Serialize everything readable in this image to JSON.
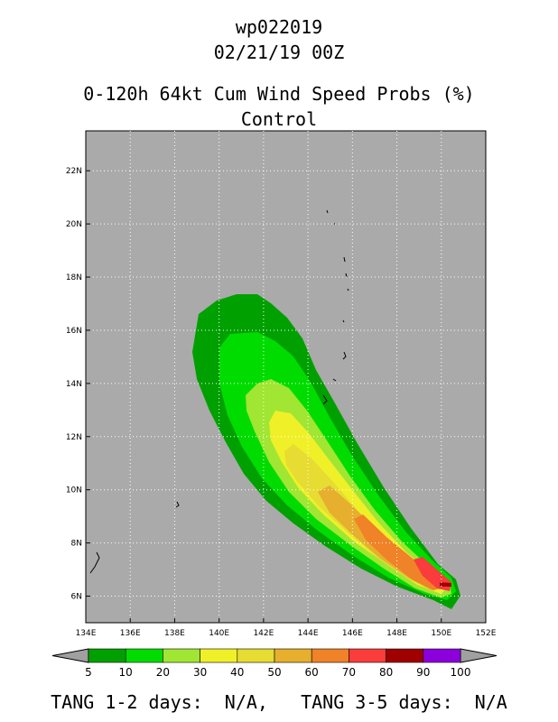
{
  "header": {
    "storm_id": "wp022019",
    "datetime": "02/21/19 00Z",
    "product_title": "0-120h 64kt Cum Wind Speed Probs (%)",
    "member": "Control"
  },
  "map": {
    "lon_range": [
      134,
      152
    ],
    "lat_range": [
      5,
      23.5
    ],
    "lon_ticks": [
      "134E",
      "136E",
      "138E",
      "140E",
      "142E",
      "144E",
      "146E",
      "148E",
      "150E",
      "152E"
    ],
    "lat_ticks": [
      "6N",
      "8N",
      "10N",
      "12N",
      "14N",
      "16N",
      "18N",
      "20N",
      "22N"
    ],
    "background_color": "#aaaaaa",
    "grid": "dotted"
  },
  "colorbar": {
    "levels": [
      "5",
      "10",
      "20",
      "30",
      "40",
      "50",
      "60",
      "70",
      "80",
      "90",
      "100"
    ],
    "colors": [
      "#00a000",
      "#00dc00",
      "#a0e632",
      "#f0f028",
      "#e6dc32",
      "#e6af2d",
      "#f08228",
      "#fa3c3c",
      "#a00000",
      "#8c00dc"
    ],
    "extend_color": "#a0a0a0"
  },
  "footer": {
    "text": "TANG 1-2 days:  N/A,   TANG 3-5 days:  N/A"
  }
}
